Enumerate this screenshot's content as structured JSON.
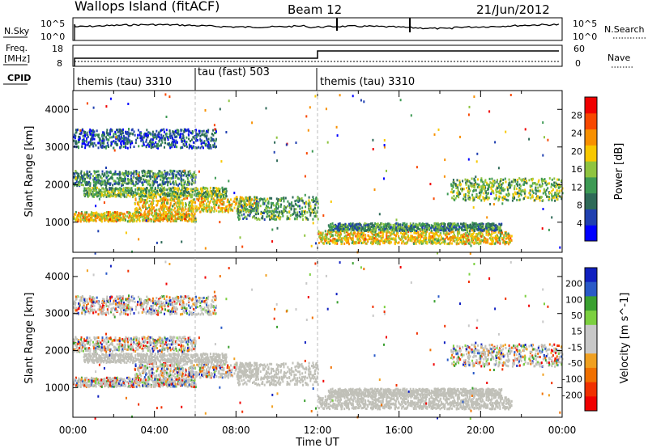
{
  "header": {
    "station": "Wallops Island (fitACF)",
    "beam": "Beam 12",
    "date": "21/Jun/2012"
  },
  "top_panels": {
    "nsky_label": "N.Sky",
    "nsearch_label": "N.Search",
    "nsky_ticks": [
      "10^5",
      "10^0"
    ],
    "nsearch_ticks": [
      "10^5",
      "10^0"
    ],
    "freq_label": "Freq.",
    "freq_unit": "[MHz]",
    "freq_ticks": [
      "18",
      "8"
    ],
    "nave_label": "Nave",
    "nave_ticks": [
      "60",
      "0"
    ],
    "cpid_label": "CPID",
    "cpid_segments": [
      "themis (tau) 3310",
      "tau (fast) 503",
      "themis (tau) 3310"
    ]
  },
  "colors": {
    "power_scale": [
      "#0000ff",
      "#2040b0",
      "#2e6a58",
      "#3d9a54",
      "#8fc440",
      "#f8c800",
      "#f89000",
      "#f84800",
      "#f00000"
    ],
    "velocity_scale": [
      "#1020c0",
      "#2a5ac8",
      "#3aa030",
      "#7cd040",
      "#c8c8c8",
      "#c8c8c8",
      "#f0a020",
      "#f07000",
      "#f03000",
      "#f00000"
    ],
    "ground_scatter": "#c0c0b8"
  },
  "chart_data": [
    {
      "type": "heatmap",
      "panel": "power",
      "ylabel": "Slant Range [km]",
      "yticks": [
        "1000",
        "2000",
        "3000",
        "4000"
      ],
      "ylim": [
        200,
        4500
      ],
      "colorbar_label": "Power [dB]",
      "colorbar_ticks": [
        "4",
        "8",
        "12",
        "16",
        "20",
        "24",
        "28"
      ],
      "xticks": [
        "00:00",
        "04:00",
        "08:00",
        "12:00",
        "16:00",
        "20:00",
        "00:00"
      ],
      "bands": [
        {
          "t": [
            0.0,
            6.0
          ],
          "range": [
            1050,
            1300
          ],
          "power": 20
        },
        {
          "t": [
            3.0,
            9.0
          ],
          "range": [
            1300,
            1700
          ],
          "power": 20
        },
        {
          "t": [
            0.5,
            7.5
          ],
          "range": [
            1700,
            1950
          ],
          "power": 14
        },
        {
          "t": [
            8.0,
            12.0
          ],
          "range": [
            1100,
            1700
          ],
          "power": 12
        },
        {
          "t": [
            12.0,
            21.5
          ],
          "range": [
            450,
            800
          ],
          "power": 20
        },
        {
          "t": [
            12.5,
            21.0
          ],
          "range": [
            800,
            1000
          ],
          "power": 10
        },
        {
          "t": [
            0.0,
            6.0
          ],
          "range": [
            2000,
            2400
          ],
          "power": 10
        },
        {
          "t": [
            0.0,
            7.0
          ],
          "range": [
            3000,
            3500
          ],
          "power": 6
        },
        {
          "t": [
            18.5,
            24.0
          ],
          "range": [
            1600,
            2200
          ],
          "power": 14
        }
      ]
    },
    {
      "type": "heatmap",
      "panel": "velocity",
      "ylabel": "Slant Range [km]",
      "yticks": [
        "1000",
        "2000",
        "3000",
        "4000"
      ],
      "ylim": [
        200,
        4500
      ],
      "colorbar_label": "Velocity [m s^-1]",
      "colorbar_ticks": [
        "200",
        "100",
        "50",
        "15",
        "-15",
        "-50",
        "-100",
        "-200"
      ],
      "xticks": [
        "00:00",
        "04:00",
        "08:00",
        "12:00",
        "16:00",
        "20:00",
        "00:00"
      ],
      "xlabel": "Time UT"
    }
  ]
}
